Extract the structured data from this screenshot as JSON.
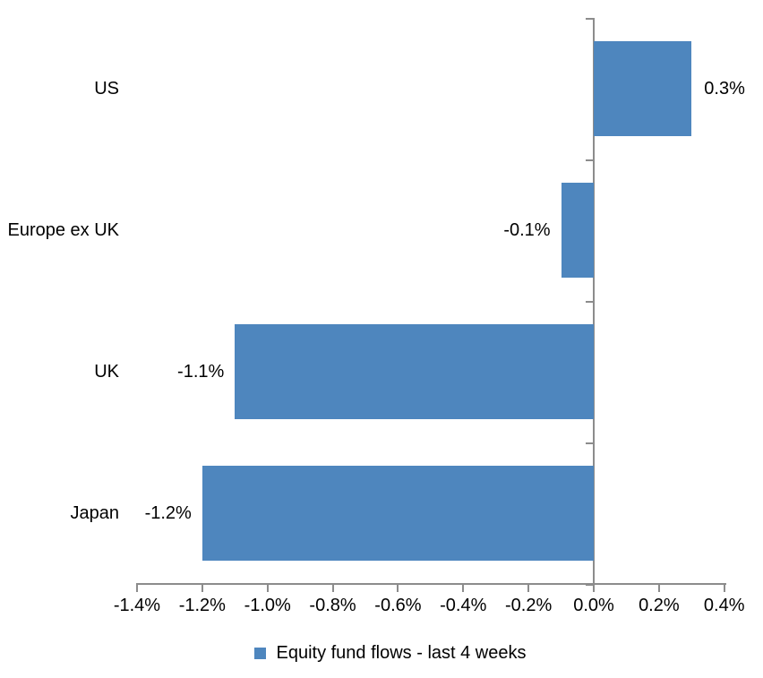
{
  "chart_data": {
    "type": "bar",
    "orientation": "horizontal",
    "title": "",
    "xlabel": "",
    "ylabel": "",
    "categories": [
      "US",
      "Europe ex UK",
      "UK",
      "Japan"
    ],
    "values": [
      0.3,
      -0.1,
      -1.1,
      -1.2
    ],
    "value_labels": [
      "0.3%",
      "-0.1%",
      "-1.1%",
      "-1.2%"
    ],
    "series_name": "Equity fund flows - last 4 weeks",
    "legend": [
      "Equity fund flows - last 4 weeks"
    ],
    "legend_position": "bottom",
    "xlim": [
      -1.4,
      0.4
    ],
    "x_ticks": [
      -1.4,
      -1.2,
      -1.0,
      -0.8,
      -0.6,
      -0.4,
      -0.2,
      0.0,
      0.2,
      0.4
    ],
    "x_tick_labels": [
      "-1.4%",
      "-1.2%",
      "-1.0%",
      "-0.8%",
      "-0.6%",
      "-0.4%",
      "-0.2%",
      "0.0%",
      "0.2%",
      "0.4%"
    ],
    "grid": false,
    "bar_color": "#4E86BE",
    "axis_color": "#8C8C8C",
    "text_color": "#000000"
  }
}
